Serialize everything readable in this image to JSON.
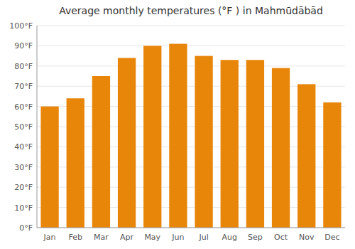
{
  "chart_data": {
    "type": "bar",
    "title": "Average monthly temperatures (°F ) in Mahmūdābād",
    "categories": [
      "Jan",
      "Feb",
      "Mar",
      "Apr",
      "May",
      "Jun",
      "Jul",
      "Aug",
      "Sep",
      "Oct",
      "Nov",
      "Dec"
    ],
    "values": [
      60,
      64,
      75,
      84,
      90,
      91,
      85,
      83,
      83,
      79,
      71,
      62
    ],
    "color": "#E8860A",
    "ylim": [
      0,
      100
    ],
    "yticks": [
      {
        "value": 0,
        "label": "0°F"
      },
      {
        "value": 10,
        "label": "10°F"
      },
      {
        "value": 20,
        "label": "20°F"
      },
      {
        "value": 30,
        "label": "30°F"
      },
      {
        "value": 40,
        "label": "40°F"
      },
      {
        "value": 50,
        "label": "50°F"
      },
      {
        "value": 60,
        "label": "60°F"
      },
      {
        "value": 70,
        "label": "70°F"
      },
      {
        "value": 80,
        "label": "80°F"
      },
      {
        "value": 90,
        "label": "90°F"
      },
      {
        "value": 100,
        "label": "100°F"
      }
    ],
    "grid": true
  }
}
